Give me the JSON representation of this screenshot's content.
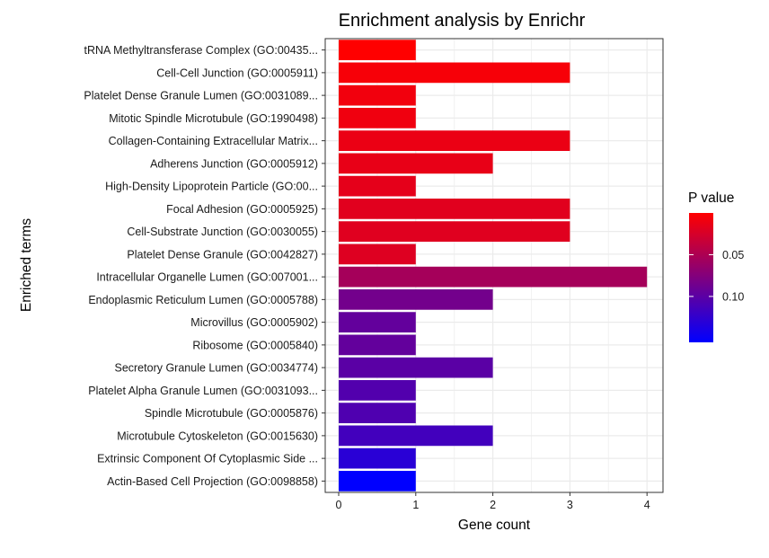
{
  "chart_data": {
    "type": "bar",
    "orientation": "horizontal",
    "title": "Enrichment analysis by Enrichr",
    "xlabel": "Gene count",
    "ylabel": "Enriched terms",
    "xlim": [
      0,
      4.2
    ],
    "xticks": [
      "0",
      "1",
      "2",
      "3",
      "4"
    ],
    "grid": true,
    "categories": [
      "tRNA Methyltransferase Complex (GO:00435...",
      "Cell-Cell Junction (GO:0005911)",
      "Platelet Dense Granule Lumen (GO:0031089...",
      "Mitotic Spindle Microtubule (GO:1990498)",
      "Collagen-Containing Extracellular Matrix...",
      "Adherens Junction (GO:0005912)",
      "High-Density Lipoprotein Particle (GO:00...",
      "Focal Adhesion (GO:0005925)",
      "Cell-Substrate Junction (GO:0030055)",
      "Platelet Dense Granule (GO:0042827)",
      "Intracellular Organelle Lumen (GO:007001...",
      "Endoplasmic Reticulum Lumen (GO:0005788)",
      "Microvillus (GO:0005902)",
      "Ribosome (GO:0005840)",
      "Secretory Granule Lumen (GO:0034774)",
      "Platelet Alpha Granule Lumen (GO:0031093...",
      "Spindle Microtubule (GO:0005876)",
      "Microtubule Cytoskeleton (GO:0015630)",
      "Extrinsic Component Of Cytoplasmic Side ...",
      "Actin-Based Cell Projection (GO:0098858)"
    ],
    "values": [
      1,
      3,
      1,
      1,
      3,
      2,
      1,
      3,
      3,
      1,
      4,
      2,
      1,
      1,
      2,
      1,
      1,
      2,
      1,
      1
    ],
    "p_values": [
      0.0,
      0.005,
      0.008,
      0.009,
      0.012,
      0.014,
      0.016,
      0.018,
      0.019,
      0.02,
      0.055,
      0.085,
      0.095,
      0.095,
      0.1,
      0.105,
      0.107,
      0.115,
      0.13,
      0.155
    ],
    "legend": {
      "title": "P value",
      "ticks": [
        {
          "label": "0.05",
          "value": 0.05
        },
        {
          "label": "0.10",
          "value": 0.1
        }
      ],
      "range": [
        0.0,
        0.155
      ],
      "colors": {
        "low": "#ff0000",
        "high": "#0000ff"
      },
      "position": "right"
    }
  }
}
